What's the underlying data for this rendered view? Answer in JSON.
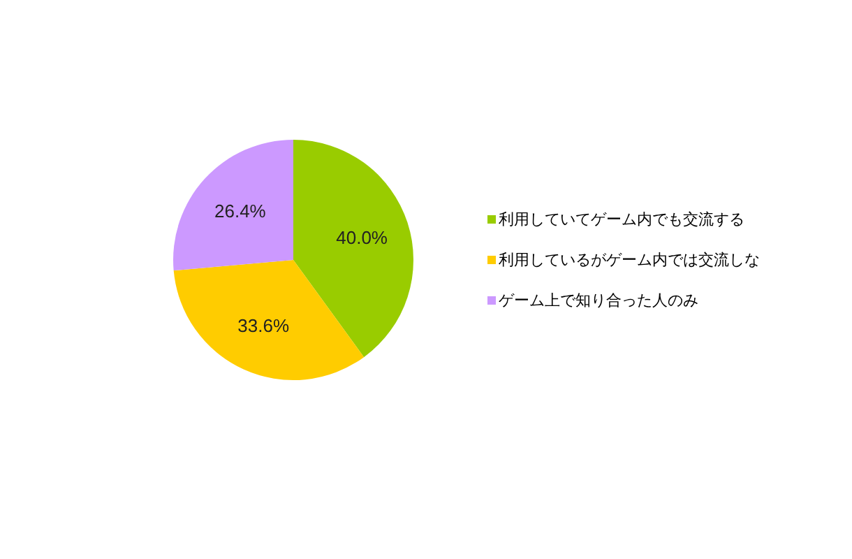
{
  "chart_data": {
    "type": "pie",
    "categories": [
      "利用していてゲーム内でも交流する",
      "利用しているがゲーム内では交流しな",
      "ゲーム上で知り合った人のみ"
    ],
    "values": [
      40.0,
      33.6,
      26.4
    ],
    "colors": [
      "#99cc00",
      "#ffcc00",
      "#cc99ff"
    ],
    "value_labels": [
      "40.0%",
      "33.6%",
      "26.4%"
    ],
    "legend": "right"
  }
}
